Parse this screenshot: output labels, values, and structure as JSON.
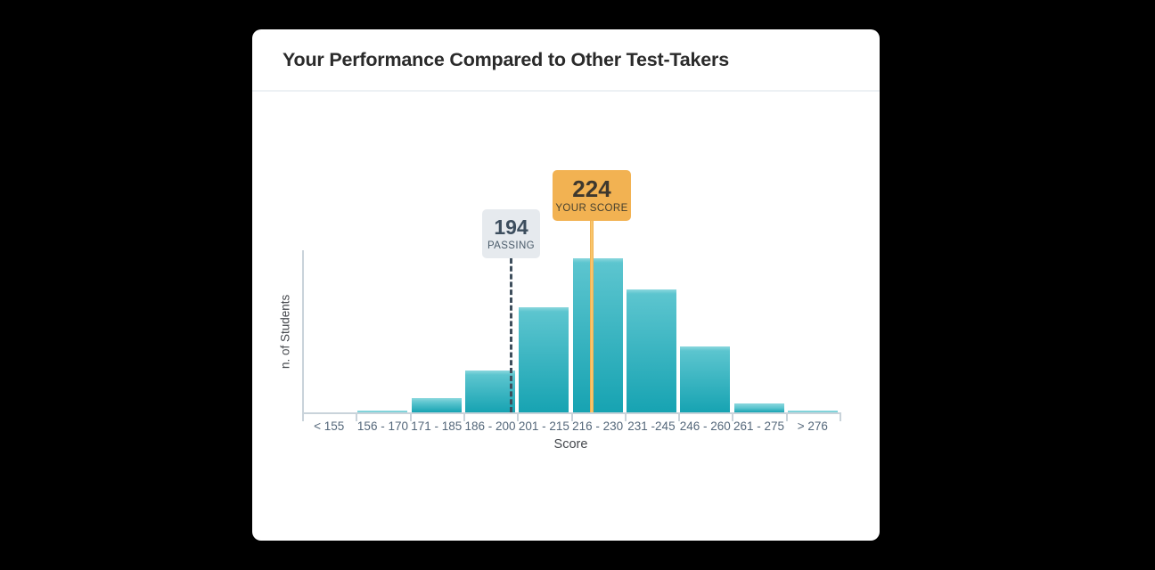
{
  "page": {
    "background_color": "#000000"
  },
  "card": {
    "title": "Your Performance Compared to Other Test-Takers",
    "background_color": "#ffffff"
  },
  "chart_data": {
    "type": "bar",
    "title": "Your Performance Compared to Other Test-Takers",
    "xlabel": "Score",
    "ylabel": "n. of Students",
    "categories": [
      "< 155",
      "156 - 170",
      "171 - 185",
      "186 - 200",
      "201 - 215",
      "216 - 230",
      "231 -245",
      "246 - 260",
      "261 - 275",
      "> 276"
    ],
    "values": [
      0,
      1,
      9,
      27,
      68,
      100,
      80,
      43,
      6,
      1
    ],
    "values_note": "relative bar heights in percent of tallest bar; y-axis has no numeric tick labels",
    "ylim": [
      0,
      105
    ],
    "grid": false,
    "legend": false,
    "bar_gradient_top": "#8bd7dd",
    "bar_gradient_mid": "#5cc5cf",
    "bar_gradient_bottom": "#17a3b2",
    "axis_color": "#c9d3da",
    "markers": [
      {
        "id": "passing",
        "value": "194",
        "label": "PASSING",
        "line_style": "dashed",
        "line_color": "#3e4e5c",
        "badge_bg": "#e6eaee",
        "text_color": "#3d4e5e"
      },
      {
        "id": "your-score",
        "value": "224",
        "label": "YOUR SCORE",
        "line_style": "solid",
        "line_color": "#f2b252",
        "badge_bg": "#f2b252",
        "text_color": "#3e382e"
      }
    ]
  }
}
